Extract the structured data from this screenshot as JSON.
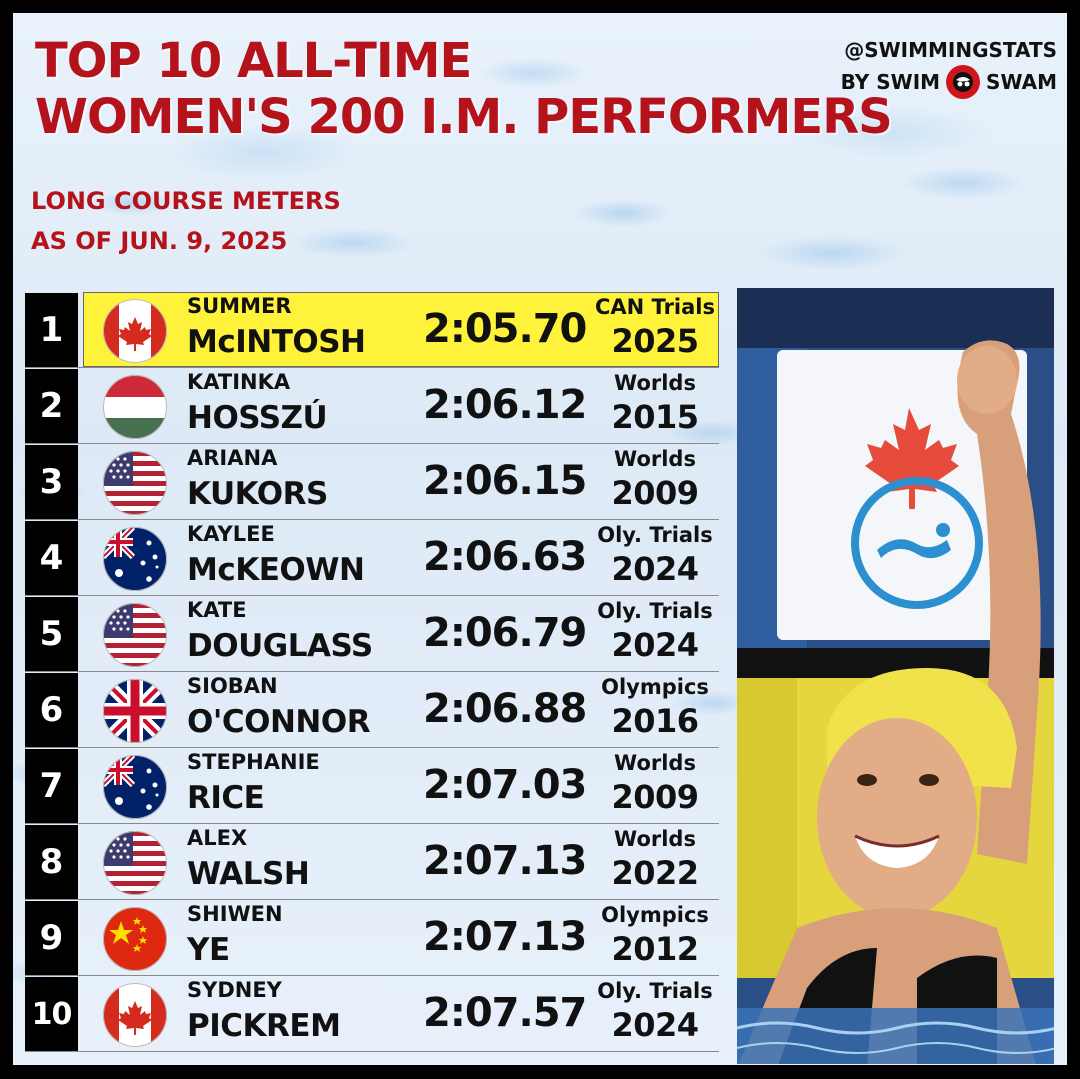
{
  "header": {
    "title_line1": "TOP 10 ALL-TIME",
    "title_line2": "WOMEN'S 200 I.M. PERFORMERS",
    "course": "LONG COURSE METERS",
    "as_of": "AS OF JUN. 9, 2025"
  },
  "brand": {
    "handle": "@SWIMMINGSTATS",
    "by": "BY SWIM",
    "name": "SWAM"
  },
  "colors": {
    "title_red": "#b5131b",
    "highlight_yellow": "#fff23a",
    "rank_bg": "#000000"
  },
  "rows": [
    {
      "rank": "1",
      "flag": "canada-flag-icon",
      "first": "SUMMER",
      "last": "McINTOSH",
      "time": "2:05.70",
      "event": "CAN Trials",
      "year": "2025",
      "highlight": true
    },
    {
      "rank": "2",
      "flag": "hungary-flag-icon",
      "first": "KATINKA",
      "last": "HOSSZÚ",
      "time": "2:06.12",
      "event": "Worlds",
      "year": "2015"
    },
    {
      "rank": "3",
      "flag": "usa-flag-icon",
      "first": "ARIANA",
      "last": "KUKORS",
      "time": "2:06.15",
      "event": "Worlds",
      "year": "2009"
    },
    {
      "rank": "4",
      "flag": "australia-flag-icon",
      "first": "KAYLEE",
      "last": "McKEOWN",
      "time": "2:06.63",
      "event": "Oly. Trials",
      "year": "2024"
    },
    {
      "rank": "5",
      "flag": "usa-flag-icon",
      "first": "KATE",
      "last": "DOUGLASS",
      "time": "2:06.79",
      "event": "Oly. Trials",
      "year": "2024"
    },
    {
      "rank": "6",
      "flag": "uk-flag-icon",
      "first": "SIOBAN",
      "last": "O'CONNOR",
      "time": "2:06.88",
      "event": "Olympics",
      "year": "2016"
    },
    {
      "rank": "7",
      "flag": "australia-flag-icon",
      "first": "STEPHANIE",
      "last": "RICE",
      "time": "2:07.03",
      "event": "Worlds",
      "year": "2009"
    },
    {
      "rank": "8",
      "flag": "usa-flag-icon",
      "first": "ALEX",
      "last": "WALSH",
      "time": "2:07.13",
      "event": "Worlds",
      "year": "2022"
    },
    {
      "rank": "9",
      "flag": "china-flag-icon",
      "first": "SHIWEN",
      "last": "YE",
      "time": "2:07.13",
      "event": "Olympics",
      "year": "2012"
    },
    {
      "rank": "10",
      "flag": "canada-flag-icon",
      "first": "SYDNEY",
      "last": "PICKREM",
      "time": "2:07.57",
      "event": "Oly. Trials",
      "year": "2024"
    }
  ]
}
